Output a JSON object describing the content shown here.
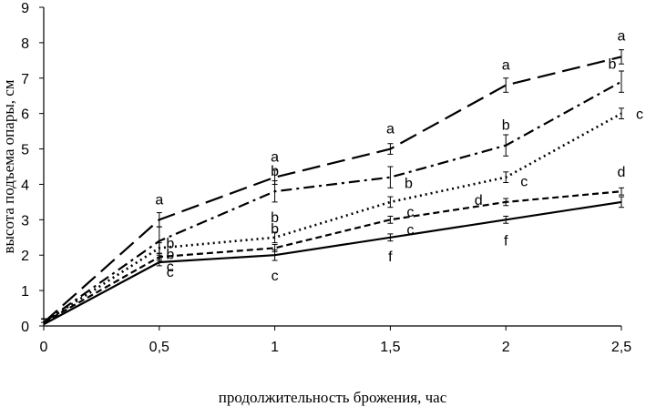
{
  "chart_data": {
    "type": "line",
    "title": "",
    "xlabel": "продолжительность брожения, час",
    "ylabel": "высота подъема опары, см",
    "x": [
      0,
      0.5,
      1,
      1.5,
      2,
      2.5
    ],
    "x_tick_labels": [
      "0",
      "0,5",
      "1",
      "1,5",
      "2",
      "2,5"
    ],
    "y_tick_labels": [
      "0",
      "1",
      "2",
      "3",
      "4",
      "5",
      "6",
      "7",
      "8",
      "9"
    ],
    "xlim": [
      0,
      2.5
    ],
    "ylim": [
      0,
      9
    ],
    "grid": false,
    "legend": "none",
    "series": [
      {
        "line_style": "long-dash",
        "values": [
          0.1,
          3.0,
          4.2,
          5.0,
          6.8,
          7.6
        ],
        "errors": [
          0.1,
          0.2,
          0.2,
          0.15,
          0.2,
          0.2
        ],
        "labels": [
          "",
          "a",
          "a",
          "a",
          "a",
          "a"
        ]
      },
      {
        "line_style": "dash-dot",
        "values": [
          0.1,
          2.4,
          3.8,
          4.2,
          5.1,
          6.9
        ],
        "errors": [
          0.1,
          0.4,
          0.3,
          0.3,
          0.3,
          0.3
        ],
        "labels": [
          "",
          "b",
          "b",
          "b",
          "b",
          "b"
        ]
      },
      {
        "line_style": "dotted",
        "values": [
          0.1,
          2.2,
          2.5,
          3.5,
          4.2,
          6.0
        ],
        "errors": [
          0.1,
          0.15,
          0.15,
          0.15,
          0.15,
          0.15
        ],
        "labels": [
          "",
          "b",
          "b",
          "c",
          "c",
          "c"
        ]
      },
      {
        "line_style": "short-dash",
        "values": [
          0.1,
          1.95,
          2.2,
          3.0,
          3.5,
          3.8
        ],
        "errors": [
          0.1,
          0.1,
          0.1,
          0.1,
          0.1,
          0.1
        ],
        "labels": [
          "",
          "c",
          "b",
          "c",
          "d",
          "d"
        ]
      },
      {
        "line_style": "solid",
        "values": [
          0.05,
          1.8,
          2.0,
          2.5,
          3.0,
          3.5
        ],
        "errors": [
          0.05,
          0.1,
          0.15,
          0.1,
          0.1,
          0.15
        ],
        "labels": [
          "",
          "c",
          "c",
          "f",
          "f",
          ""
        ]
      }
    ]
  }
}
